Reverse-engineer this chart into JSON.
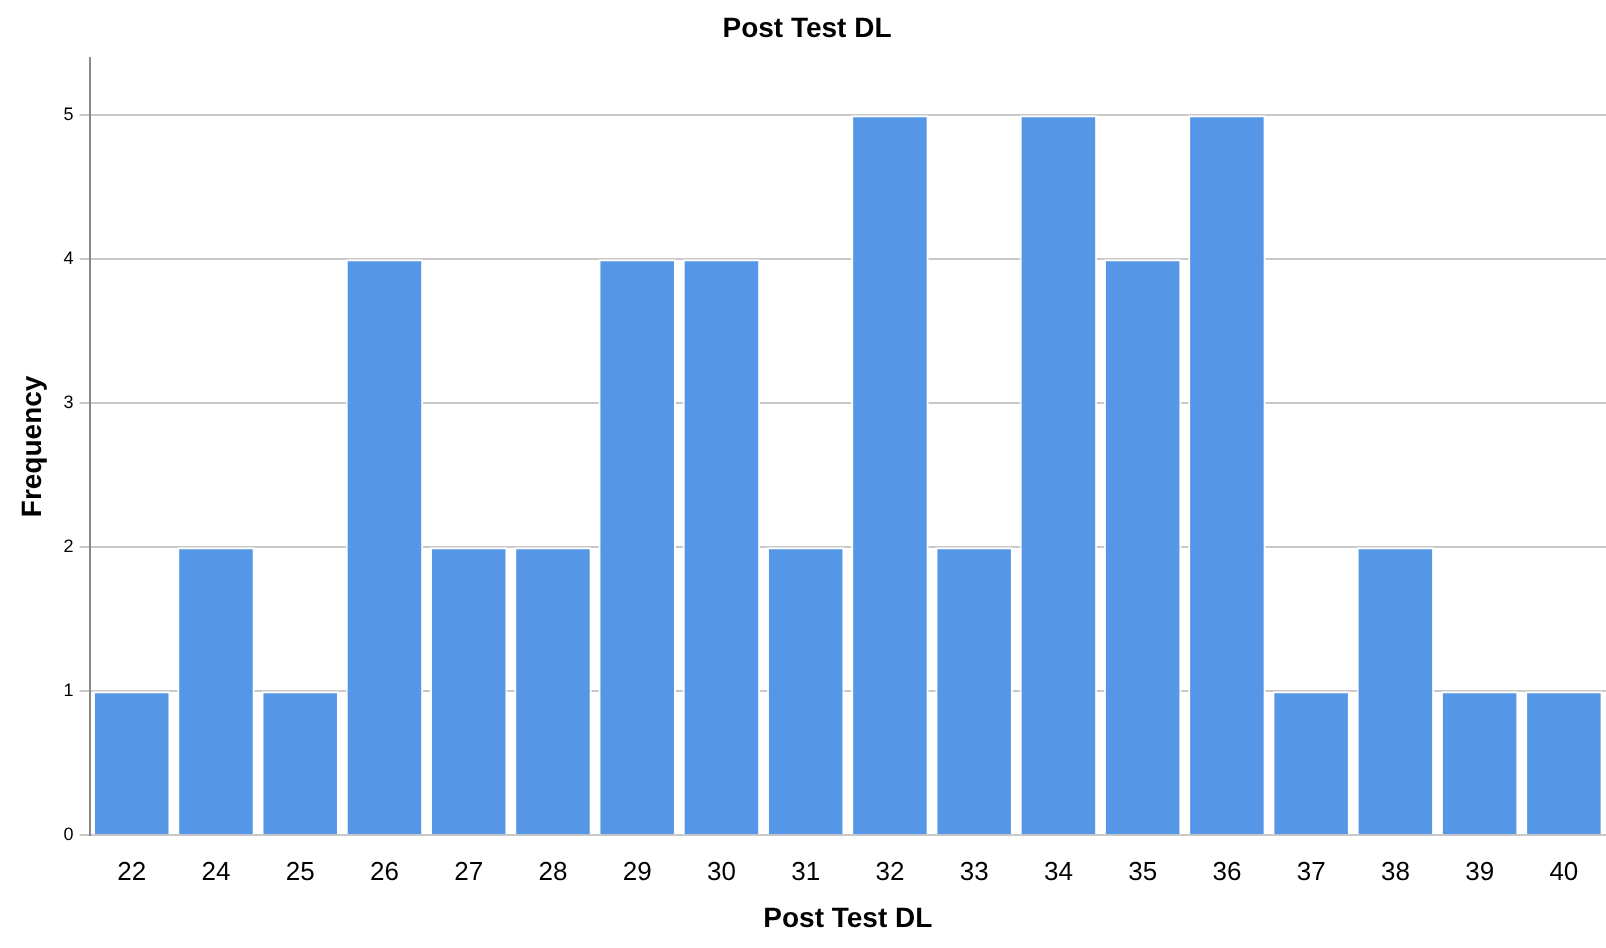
{
  "chart_data": {
    "type": "bar",
    "title": "Post Test DL",
    "xlabel": "Post Test DL",
    "ylabel": "Frequency",
    "categories": [
      "22",
      "24",
      "25",
      "26",
      "27",
      "28",
      "29",
      "30",
      "31",
      "32",
      "33",
      "34",
      "35",
      "36",
      "37",
      "38",
      "39",
      "40"
    ],
    "values": [
      1,
      2,
      1,
      4,
      2,
      2,
      4,
      4,
      2,
      5,
      2,
      5,
      4,
      5,
      1,
      2,
      1,
      1
    ],
    "color": "#5596e6",
    "ylim": [
      0,
      5.4
    ],
    "yticks": [
      0,
      1,
      2,
      3,
      4,
      5
    ],
    "grid": "y"
  }
}
